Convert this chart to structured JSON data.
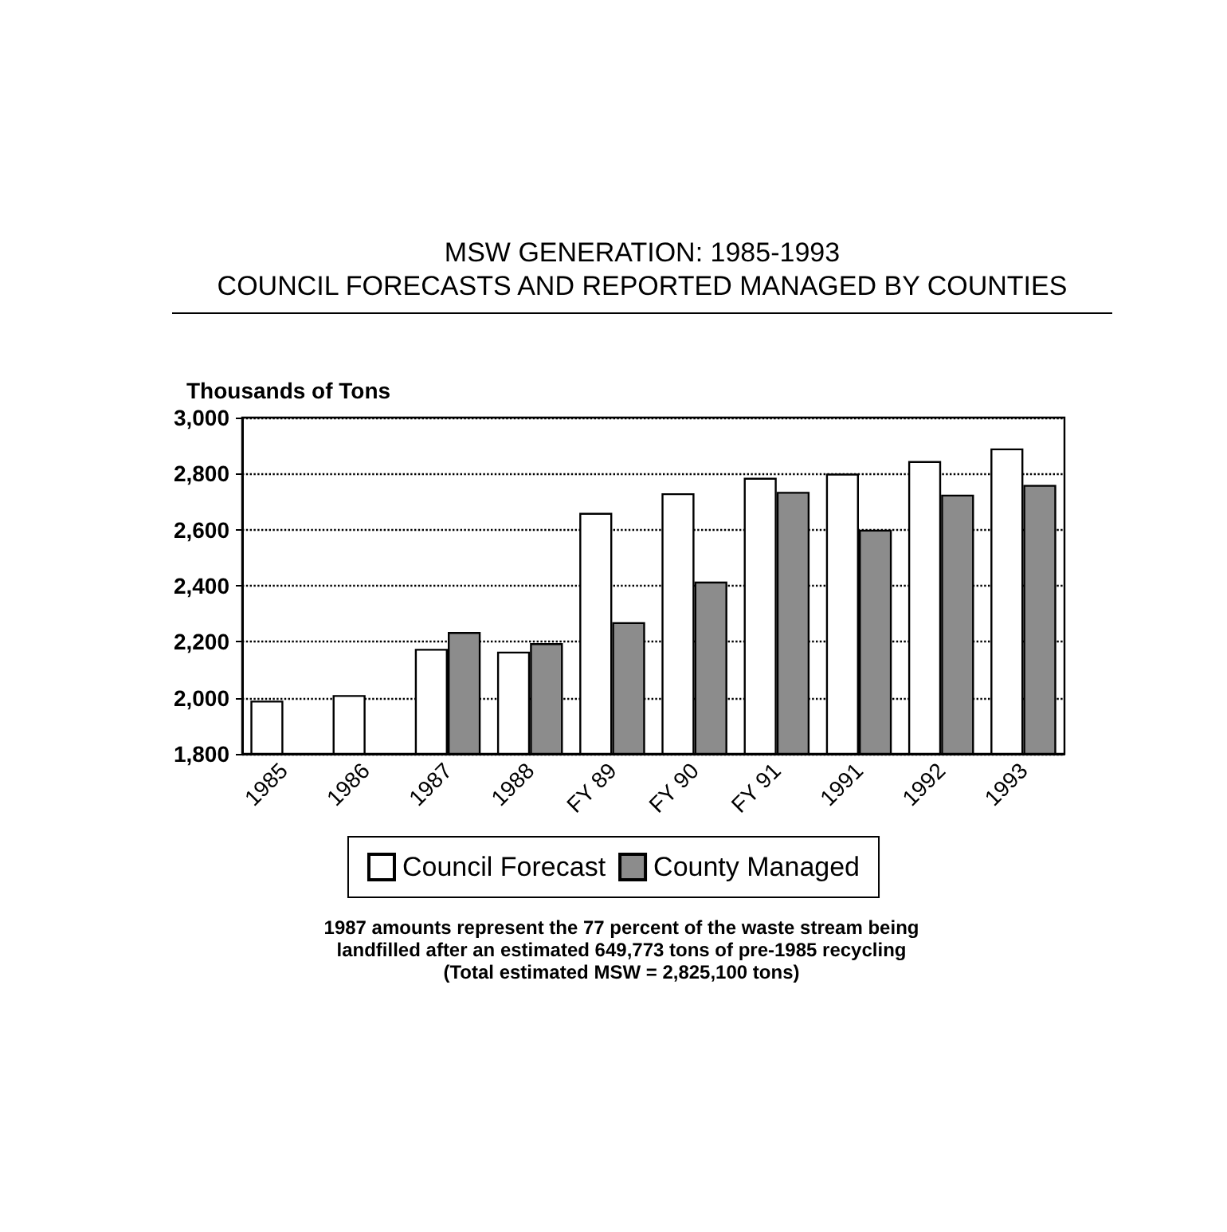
{
  "chart_data": {
    "type": "bar",
    "title": "MSW GENERATION: 1985-1993",
    "subtitle": "COUNCIL FORECASTS AND REPORTED MANAGED BY COUNTIES",
    "ylabel": "Thousands of Tons",
    "categories": [
      "1985",
      "1986",
      "1987",
      "1988",
      "FY 89",
      "FY 90",
      "FY 91",
      "1991",
      "1992",
      "1993"
    ],
    "series": [
      {
        "name": "Council Forecast",
        "color": "#ffffff",
        "values": [
          1990,
          2010,
          2175,
          2165,
          2660,
          2730,
          2785,
          2800,
          2845,
          2890
        ]
      },
      {
        "name": "County Managed",
        "color": "#8c8c8c",
        "values": [
          null,
          null,
          2235,
          2195,
          2270,
          2415,
          2735,
          2600,
          2725,
          2760
        ]
      }
    ],
    "ylim": [
      1800,
      3000
    ],
    "yticks": [
      {
        "value": 1800,
        "label": "1,800"
      },
      {
        "value": 2000,
        "label": "2,000"
      },
      {
        "value": 2200,
        "label": "2,200"
      },
      {
        "value": 2400,
        "label": "2,400"
      },
      {
        "value": 2600,
        "label": "2,600"
      },
      {
        "value": 2800,
        "label": "2,800"
      },
      {
        "value": 3000,
        "label": "3,000"
      }
    ],
    "grid": "y",
    "legend": "bottom",
    "annotations": [
      "1987 amounts represent the 77 percent of the waste stream being landfilled after an estimated 649,773 tons of pre-1985 recycling (Total estimated MSW = 2,825,100 tons)"
    ]
  }
}
